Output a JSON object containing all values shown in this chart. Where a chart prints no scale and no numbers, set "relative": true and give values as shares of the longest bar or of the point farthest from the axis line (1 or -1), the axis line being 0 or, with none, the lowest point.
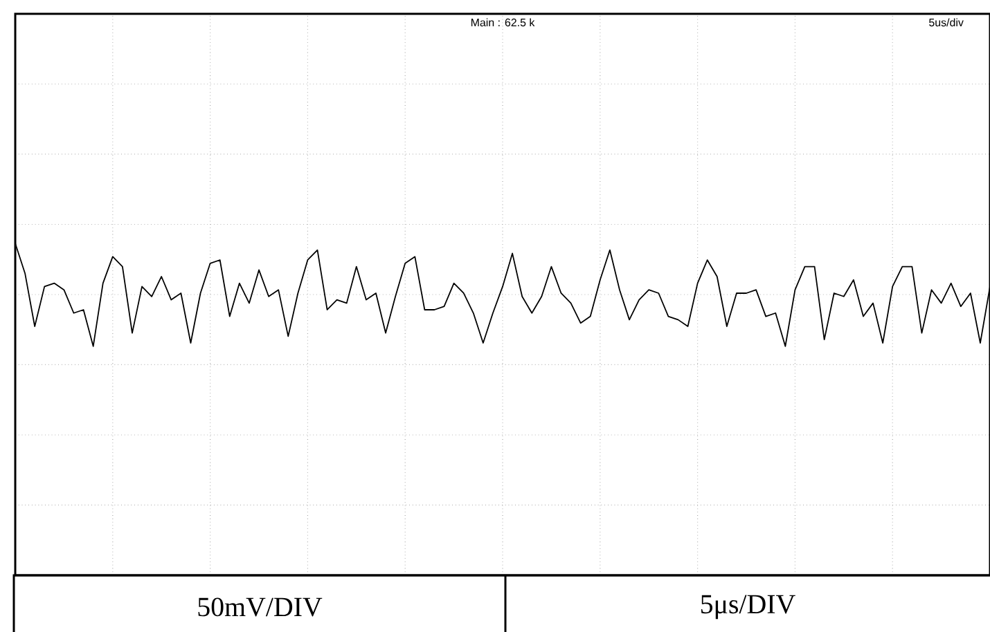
{
  "chart_data": {
    "type": "line",
    "relative": true,
    "grid": true,
    "categories": [
      null,
      null,
      null,
      null,
      null,
      null,
      null,
      null,
      null,
      null,
      null,
      null,
      null,
      null,
      null,
      null,
      null,
      null,
      null,
      null,
      null,
      null,
      null,
      null,
      null,
      null,
      null,
      null,
      null,
      null,
      null,
      null,
      null,
      null,
      null,
      null,
      null,
      null,
      null,
      null,
      null,
      null,
      null,
      null,
      null,
      null,
      null,
      null,
      null,
      null,
      null,
      null,
      null,
      null,
      null,
      null,
      null,
      null,
      null,
      null,
      null,
      null,
      null,
      null,
      null,
      null,
      null,
      null,
      null,
      null,
      null,
      null,
      null,
      null,
      null,
      null,
      null,
      null,
      null,
      null,
      null,
      null,
      null,
      null,
      null,
      null,
      null,
      null,
      null,
      null,
      null,
      null,
      null,
      null,
      null,
      null,
      null,
      null,
      null,
      null,
      null
    ],
    "annotations": [
      "Main : 62.5 k",
      "5us/div",
      "50mV/DIV",
      "5μs/DIV"
    ],
    "series": [
      {
        "color": "#000000",
        "values": [
          1.0,
          0.91,
          0.75,
          0.87,
          0.88,
          0.86,
          0.79,
          0.8,
          0.69,
          0.88,
          0.96,
          0.93,
          0.73,
          0.87,
          0.84,
          0.9,
          0.83,
          0.85,
          0.7,
          0.85,
          0.94,
          0.95,
          0.78,
          0.88,
          0.82,
          0.92,
          0.84,
          0.86,
          0.72,
          0.85,
          0.95,
          0.98,
          0.8,
          0.83,
          0.82,
          0.93,
          0.83,
          0.85,
          0.73,
          0.84,
          0.94,
          0.96,
          0.8,
          0.8,
          0.81,
          0.88,
          0.85,
          0.79,
          0.7,
          0.79,
          0.87,
          0.97,
          0.84,
          0.79,
          0.84,
          0.93,
          0.85,
          0.82,
          0.76,
          0.78,
          0.89,
          0.98,
          0.86,
          0.77,
          0.83,
          0.86,
          0.85,
          0.78,
          0.77,
          0.75,
          0.88,
          0.95,
          0.9,
          0.75,
          0.85,
          0.85,
          0.86,
          0.78,
          0.79,
          0.69,
          0.86,
          0.93,
          0.93,
          0.71,
          0.85,
          0.84,
          0.89,
          0.78,
          0.82,
          0.7,
          0.87,
          0.93,
          0.93,
          0.73,
          0.86,
          0.82,
          0.88,
          0.81,
          0.85,
          0.7,
          0.87
        ]
      }
    ]
  }
}
